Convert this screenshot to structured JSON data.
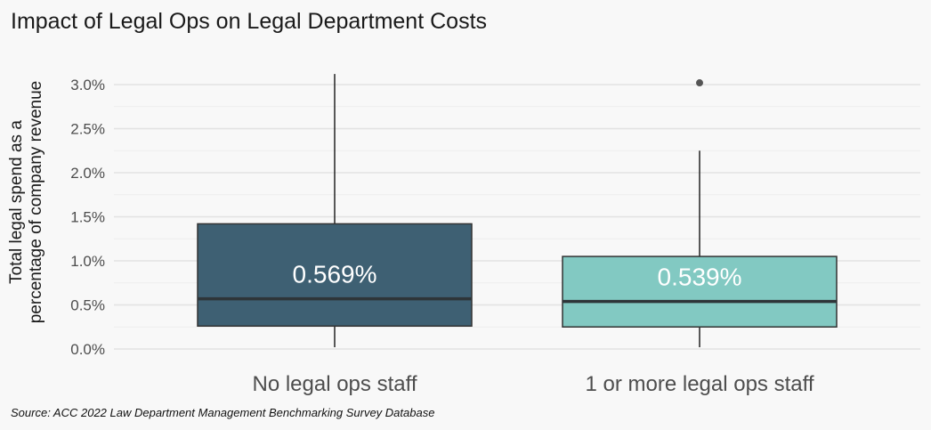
{
  "chart_data": {
    "type": "boxplot",
    "title": "Impact of Legal Ops on Legal Department Costs",
    "xlabel": "",
    "ylabel": [
      "Total legal spend as a",
      "percentage of company revenue"
    ],
    "ylim": [
      0,
      3.0
    ],
    "yticks": [
      "0.0%",
      "0.5%",
      "1.0%",
      "1.5%",
      "2.0%",
      "2.5%",
      "3.0%"
    ],
    "grid": true,
    "legend": "none",
    "categories": [
      "No legal ops staff",
      "1 or more legal ops staff"
    ],
    "boxes": [
      {
        "category": "No legal ops staff",
        "whisker_low": 0.02,
        "q1": 0.26,
        "median": 0.569,
        "q3": 1.42,
        "whisker_high": 3.12,
        "outliers": [],
        "label": "0.569%",
        "color": "#3e6073"
      },
      {
        "category": "1 or more legal ops staff",
        "whisker_low": 0.02,
        "q1": 0.25,
        "median": 0.539,
        "q3": 1.05,
        "whisker_high": 2.25,
        "outliers": [
          3.02
        ],
        "label": "0.539%",
        "color": "#82c9c2"
      }
    ]
  },
  "source": "Source: ACC 2022 Law Department Management Benchmarking Survey Database"
}
